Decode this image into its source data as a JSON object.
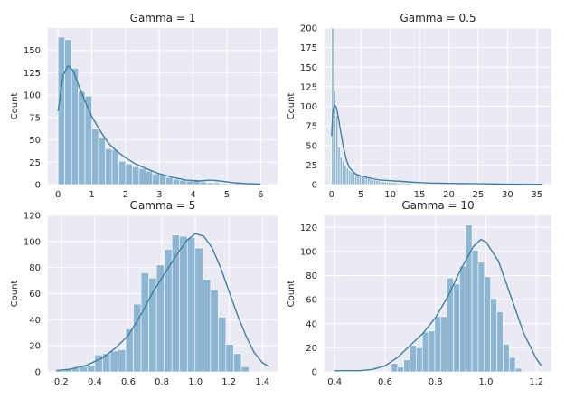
{
  "colors": {
    "panel_bg": "#eaeaf2",
    "grid": "#ffffff",
    "bar_fill": "#8db6d2",
    "bar_edge": "#ffffff",
    "kde_line": "#3f7fa2"
  },
  "chart_data": [
    {
      "type": "bar",
      "title": "Gamma = 1",
      "ylabel": "Count",
      "xlim": [
        -0.3,
        6.5
      ],
      "ylim": [
        0,
        175
      ],
      "xticks": [
        0,
        1,
        2,
        3,
        4,
        5,
        6
      ],
      "yticks": [
        0,
        25,
        50,
        75,
        100,
        125,
        150
      ],
      "bin_start": 0.0,
      "bin_width": 0.2,
      "values": [
        165,
        162,
        130,
        104,
        99,
        62,
        52,
        40,
        39,
        26,
        23,
        20,
        18,
        15,
        12,
        11,
        8,
        6,
        5,
        4,
        4,
        3,
        2,
        2,
        1,
        1,
        1,
        1,
        0,
        1,
        1
      ],
      "kde": {
        "x": [
          0,
          0.15,
          0.3,
          0.45,
          0.6,
          0.8,
          1.0,
          1.25,
          1.5,
          1.75,
          2.0,
          2.3,
          2.6,
          3.0,
          3.4,
          3.8,
          4.2,
          4.5,
          4.8,
          5.2,
          5.6,
          6.0
        ],
        "y": [
          82,
          122,
          133,
          127,
          112,
          93,
          76,
          60,
          46,
          37,
          30,
          23,
          18,
          12,
          8,
          5,
          4,
          5,
          4,
          2,
          1,
          0.5
        ]
      }
    },
    {
      "type": "bar",
      "title": "Gamma = 0.5",
      "ylabel": "Count",
      "xlim": [
        -1.2,
        37.5
      ],
      "ylim": [
        0,
        200
      ],
      "xticks": [
        0,
        5,
        10,
        15,
        20,
        25,
        30,
        35
      ],
      "yticks": [
        0,
        25,
        50,
        75,
        100,
        125,
        150,
        175,
        200
      ],
      "bin_start": 0.0,
      "bin_width": 0.36,
      "values": [
        200,
        120,
        88,
        48,
        35,
        30,
        24,
        21,
        18,
        16,
        15,
        13,
        12,
        11,
        10,
        9,
        9,
        8,
        7,
        6,
        6,
        5,
        5,
        4,
        4,
        4,
        3,
        3,
        3,
        3,
        3,
        2,
        2,
        2,
        2,
        2,
        2,
        2,
        1,
        1,
        1,
        1,
        1,
        1,
        1,
        1,
        1,
        1,
        1,
        1,
        0,
        1,
        0,
        1,
        0,
        1,
        0,
        1,
        0,
        1,
        0,
        0,
        1,
        0,
        0,
        1,
        0,
        0,
        0,
        1,
        0,
        0,
        0,
        0,
        1,
        0,
        0,
        0,
        0,
        0,
        1,
        0,
        0,
        0,
        0,
        0,
        0,
        0,
        0,
        0,
        0,
        0,
        0,
        0,
        0,
        0,
        0,
        0,
        1,
        0
      ],
      "kde": {
        "x": [
          0,
          0.2,
          0.5,
          0.8,
          1.1,
          1.5,
          2.0,
          2.5,
          3.0,
          4.0,
          5.0,
          6.0,
          8.0,
          10.0,
          12.0,
          14.0,
          17.0,
          20.0,
          25.0,
          30.0,
          36.0
        ],
        "y": [
          62,
          92,
          102,
          99,
          88,
          70,
          48,
          32,
          22,
          14,
          11,
          9,
          6,
          5,
          4,
          3,
          2,
          1.5,
          1,
          0.5,
          0.3
        ]
      }
    },
    {
      "type": "bar",
      "title": "Gamma = 5",
      "ylabel": "Count",
      "xlim": [
        0.12,
        1.49
      ],
      "ylim": [
        0,
        120
      ],
      "xticks": [
        0.2,
        0.4,
        0.6,
        0.8,
        1.0,
        1.2,
        1.4
      ],
      "xtick_labels": [
        "0.2",
        "0.4",
        "0.6",
        "0.8",
        "1.0",
        "1.2",
        "1.4"
      ],
      "yticks": [
        0,
        20,
        40,
        60,
        80,
        100,
        120
      ],
      "bin_start": 0.17,
      "bin_width": 0.046,
      "values": [
        1,
        2,
        3,
        4,
        5,
        13,
        14,
        16,
        17,
        33,
        52,
        76,
        72,
        82,
        94,
        105,
        104,
        103,
        95,
        71,
        63,
        42,
        21,
        14,
        4
      ],
      "kde": {
        "x": [
          0.17,
          0.25,
          0.35,
          0.45,
          0.52,
          0.6,
          0.68,
          0.75,
          0.8,
          0.85,
          0.9,
          0.95,
          1.0,
          1.05,
          1.1,
          1.15,
          1.2,
          1.25,
          1.3,
          1.35,
          1.4,
          1.44
        ],
        "y": [
          1,
          2,
          5,
          11,
          18,
          28,
          45,
          62,
          72,
          82,
          92,
          101,
          106,
          104,
          95,
          80,
          62,
          44,
          28,
          15,
          7,
          4
        ]
      }
    },
    {
      "type": "bar",
      "title": "Gamma = 10",
      "ylabel": "Count",
      "xlim": [
        0.36,
        1.26
      ],
      "ylim": [
        0,
        130
      ],
      "xticks": [
        0.4,
        0.6,
        0.8,
        1.0,
        1.2
      ],
      "xtick_labels": [
        "0.4",
        "0.6",
        "0.8",
        "1.0",
        "1.2"
      ],
      "yticks": [
        0,
        20,
        40,
        60,
        80,
        100,
        120
      ],
      "bin_start": 0.625,
      "bin_width": 0.0246,
      "values": [
        7,
        4,
        10,
        22,
        20,
        33,
        34,
        46,
        46,
        78,
        73,
        88,
        122,
        101,
        91,
        79,
        61,
        50,
        23,
        12,
        3
      ],
      "kde": {
        "x": [
          0.4,
          0.5,
          0.55,
          0.6,
          0.65,
          0.7,
          0.75,
          0.8,
          0.85,
          0.9,
          0.95,
          0.98,
          1.0,
          1.05,
          1.1,
          1.15,
          1.2,
          1.22
        ],
        "y": [
          1,
          1,
          2,
          5,
          12,
          22,
          32,
          45,
          63,
          85,
          104,
          110,
          108,
          92,
          62,
          32,
          11,
          5
        ]
      }
    }
  ]
}
